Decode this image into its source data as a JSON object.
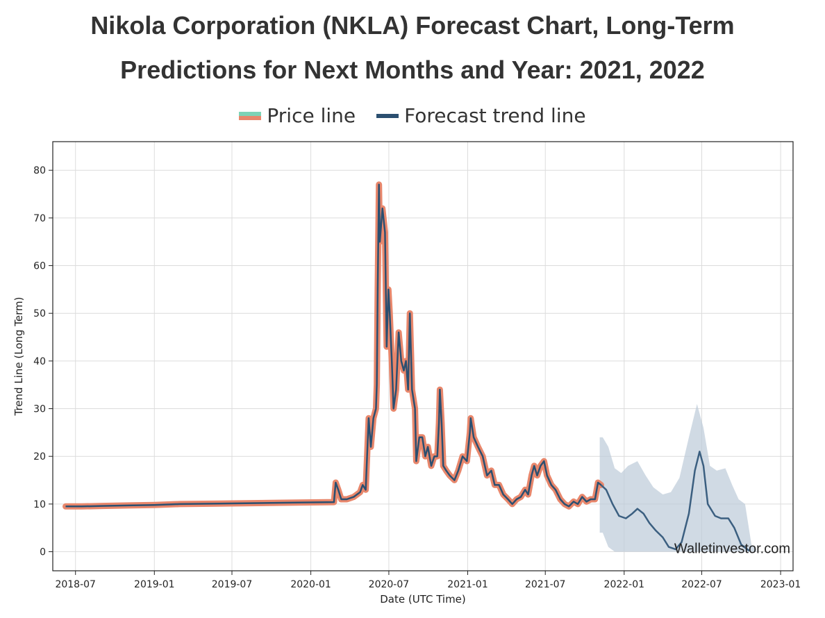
{
  "title_line1": "Nikola Corporation (NKLA) Forecast Chart, Long-Term",
  "title_line2": "Predictions for Next Months and Year: 2021, 2022",
  "legend": {
    "price": "Price line",
    "forecast": "Forecast trend line"
  },
  "watermark": "Walletinvestor.com",
  "colors": {
    "price_outline": "#e8876c",
    "price_legend_top": "#7dd3b7",
    "forecast": "#2b4f70",
    "band": "#bccbd8"
  },
  "chart_data": {
    "type": "line",
    "xlabel": "Date (UTC Time)",
    "ylabel": "Trend Line (Long Term)",
    "ylim": [
      -4,
      86
    ],
    "xlim": [
      "2018-05-09",
      "2023-01-30"
    ],
    "grid": true,
    "legend_position": "top-center",
    "y_ticks": [
      0,
      10,
      20,
      30,
      40,
      50,
      60,
      70,
      80
    ],
    "x_ticks": [
      {
        "date": "2018-07-01",
        "label": "2018-07"
      },
      {
        "date": "2019-01-01",
        "label": "2019-01"
      },
      {
        "date": "2019-07-01",
        "label": "2019-07"
      },
      {
        "date": "2020-01-01",
        "label": "2020-01"
      },
      {
        "date": "2020-07-01",
        "label": "2020-07"
      },
      {
        "date": "2021-01-01",
        "label": "2021-01"
      },
      {
        "date": "2021-07-01",
        "label": "2021-07"
      },
      {
        "date": "2022-01-01",
        "label": "2022-01"
      },
      {
        "date": "2022-07-01",
        "label": "2022-07"
      },
      {
        "date": "2023-01-01",
        "label": "2023-01"
      }
    ],
    "series": [
      {
        "name": "Price line",
        "points": [
          [
            "2018-06-08",
            9.5
          ],
          [
            "2018-07-15",
            9.5
          ],
          [
            "2018-09-01",
            9.6
          ],
          [
            "2018-11-01",
            9.7
          ],
          [
            "2019-01-01",
            9.8
          ],
          [
            "2019-03-01",
            10.0
          ],
          [
            "2019-06-01",
            10.1
          ],
          [
            "2019-09-01",
            10.2
          ],
          [
            "2019-12-01",
            10.3
          ],
          [
            "2020-02-24",
            10.4
          ],
          [
            "2020-02-28",
            14.5
          ],
          [
            "2020-03-05",
            13.0
          ],
          [
            "2020-03-12",
            11.0
          ],
          [
            "2020-03-25",
            11.0
          ],
          [
            "2020-04-10",
            11.5
          ],
          [
            "2020-04-25",
            12.5
          ],
          [
            "2020-05-01",
            14.0
          ],
          [
            "2020-05-08",
            13.0
          ],
          [
            "2020-05-15",
            28.0
          ],
          [
            "2020-05-20",
            22.0
          ],
          [
            "2020-05-26",
            28.0
          ],
          [
            "2020-06-01",
            30.0
          ],
          [
            "2020-06-03",
            35.0
          ],
          [
            "2020-06-05",
            55.0
          ],
          [
            "2020-06-08",
            77.0
          ],
          [
            "2020-06-10",
            65.0
          ],
          [
            "2020-06-16",
            72.0
          ],
          [
            "2020-06-22",
            67.0
          ],
          [
            "2020-06-26",
            43.0
          ],
          [
            "2020-06-30",
            55.0
          ],
          [
            "2020-07-03",
            50.0
          ],
          [
            "2020-07-08",
            40.0
          ],
          [
            "2020-07-12",
            30.0
          ],
          [
            "2020-07-18",
            34.0
          ],
          [
            "2020-07-24",
            46.0
          ],
          [
            "2020-07-30",
            40.0
          ],
          [
            "2020-08-05",
            38.0
          ],
          [
            "2020-08-10",
            40.0
          ],
          [
            "2020-08-15",
            34.0
          ],
          [
            "2020-08-19",
            50.0
          ],
          [
            "2020-08-24",
            34.0
          ],
          [
            "2020-08-31",
            30.0
          ],
          [
            "2020-09-03",
            19.0
          ],
          [
            "2020-09-10",
            24.0
          ],
          [
            "2020-09-17",
            24.0
          ],
          [
            "2020-09-24",
            20.0
          ],
          [
            "2020-09-30",
            22.0
          ],
          [
            "2020-10-08",
            18.0
          ],
          [
            "2020-10-15",
            20.0
          ],
          [
            "2020-10-22",
            20.0
          ],
          [
            "2020-10-26",
            27.0
          ],
          [
            "2020-10-28",
            34.0
          ],
          [
            "2020-11-01",
            27.0
          ],
          [
            "2020-11-05",
            18.0
          ],
          [
            "2020-11-12",
            17.0
          ],
          [
            "2020-11-20",
            16.0
          ],
          [
            "2020-12-01",
            15.0
          ],
          [
            "2020-12-10",
            17.0
          ],
          [
            "2020-12-20",
            20.0
          ],
          [
            "2020-12-30",
            19.0
          ],
          [
            "2021-01-06",
            25.0
          ],
          [
            "2021-01-08",
            28.0
          ],
          [
            "2021-01-15",
            24.0
          ],
          [
            "2021-01-25",
            22.0
          ],
          [
            "2021-02-05",
            20.0
          ],
          [
            "2021-02-15",
            16.0
          ],
          [
            "2021-02-25",
            17.0
          ],
          [
            "2021-03-05",
            14.0
          ],
          [
            "2021-03-15",
            14.0
          ],
          [
            "2021-03-25",
            12.0
          ],
          [
            "2021-04-05",
            11.0
          ],
          [
            "2021-04-15",
            10.0
          ],
          [
            "2021-04-25",
            11.0
          ],
          [
            "2021-05-05",
            11.5
          ],
          [
            "2021-05-15",
            13.0
          ],
          [
            "2021-05-22",
            12.0
          ],
          [
            "2021-05-30",
            16.0
          ],
          [
            "2021-06-05",
            18.0
          ],
          [
            "2021-06-12",
            16.0
          ],
          [
            "2021-06-20",
            18.0
          ],
          [
            "2021-06-28",
            19.0
          ],
          [
            "2021-07-05",
            16.0
          ],
          [
            "2021-07-15",
            14.0
          ],
          [
            "2021-07-25",
            13.0
          ],
          [
            "2021-08-05",
            11.0
          ],
          [
            "2021-08-15",
            10.0
          ],
          [
            "2021-08-25",
            9.5
          ],
          [
            "2021-09-05",
            10.5
          ],
          [
            "2021-09-15",
            10.0
          ],
          [
            "2021-09-25",
            11.5
          ],
          [
            "2021-10-05",
            10.5
          ],
          [
            "2021-10-15",
            11.0
          ],
          [
            "2021-10-25",
            11.0
          ],
          [
            "2021-11-01",
            14.5
          ],
          [
            "2021-11-08",
            14.0
          ]
        ]
      },
      {
        "name": "Forecast trend line",
        "points": [
          [
            "2021-11-08",
            14.0
          ],
          [
            "2021-11-20",
            13.0
          ],
          [
            "2021-12-05",
            10.0
          ],
          [
            "2021-12-20",
            7.5
          ],
          [
            "2022-01-05",
            7.0
          ],
          [
            "2022-01-20",
            8.0
          ],
          [
            "2022-02-01",
            9.0
          ],
          [
            "2022-02-15",
            8.0
          ],
          [
            "2022-03-01",
            6.0
          ],
          [
            "2022-03-15",
            4.5
          ],
          [
            "2022-04-01",
            3.0
          ],
          [
            "2022-04-15",
            1.0
          ],
          [
            "2022-05-01",
            0.5
          ],
          [
            "2022-05-15",
            2.0
          ],
          [
            "2022-06-01",
            8.0
          ],
          [
            "2022-06-15",
            17.0
          ],
          [
            "2022-06-26",
            21.0
          ],
          [
            "2022-07-05",
            18.0
          ],
          [
            "2022-07-15",
            10.0
          ],
          [
            "2022-08-01",
            7.5
          ],
          [
            "2022-08-15",
            7.0
          ],
          [
            "2022-09-01",
            7.0
          ],
          [
            "2022-09-15",
            5.0
          ],
          [
            "2022-10-01",
            1.5
          ],
          [
            "2022-10-20",
            0.2
          ]
        ]
      }
    ],
    "confidence_band": [
      [
        "2021-11-05",
        4.0,
        24.0
      ],
      [
        "2021-11-12",
        4.0,
        24.0
      ],
      [
        "2021-11-25",
        1.0,
        22.0
      ],
      [
        "2021-12-10",
        0.0,
        17.5
      ],
      [
        "2021-12-25",
        0.0,
        16.5
      ],
      [
        "2022-01-10",
        0.0,
        18.0
      ],
      [
        "2022-02-01",
        0.0,
        19.0
      ],
      [
        "2022-02-20",
        0.0,
        16.0
      ],
      [
        "2022-03-10",
        0.0,
        13.5
      ],
      [
        "2022-04-01",
        0.0,
        12.0
      ],
      [
        "2022-04-20",
        0.0,
        12.5
      ],
      [
        "2022-05-10",
        0.0,
        15.5
      ],
      [
        "2022-06-01",
        0.0,
        24.0
      ],
      [
        "2022-06-20",
        0.0,
        31.0
      ],
      [
        "2022-07-05",
        0.0,
        26.0
      ],
      [
        "2022-07-20",
        0.0,
        18.0
      ],
      [
        "2022-08-05",
        0.0,
        17.0
      ],
      [
        "2022-08-25",
        0.0,
        17.5
      ],
      [
        "2022-09-10",
        0.0,
        14.0
      ],
      [
        "2022-09-25",
        0.0,
        11.0
      ],
      [
        "2022-10-10",
        0.0,
        10.0
      ],
      [
        "2022-10-25",
        0.0,
        1.5
      ],
      [
        "2022-11-05",
        0.0,
        0.5
      ]
    ]
  }
}
